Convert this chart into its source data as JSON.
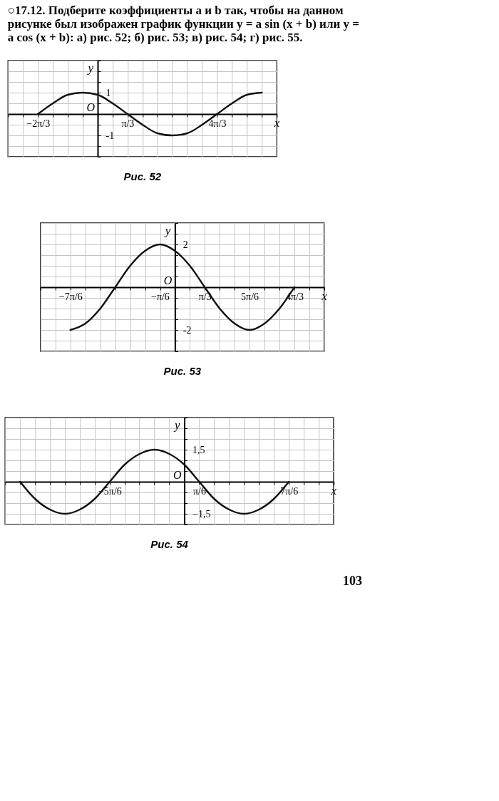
{
  "chart_data": [
    {
      "type": "line",
      "title": "○17.12. Подберите коэффициенты a и b так, чтобы на данном рисунке был изображен график функции y = a sin (x + b) или y = a cos (x + b): а) рис. 52; б) рис. 53; в) рис. 54; г) рис. 55.",
      "xlabel": "x",
      "ylabel": "y",
      "grid": true,
      "marker": "none",
      "line_style": "solid",
      "xlim": [
        -3.142,
        6.283
      ],
      "ylim": [
        -2,
        2.5
      ],
      "xticks": [
        {
          "value": -3.142,
          "label": null
        },
        {
          "value": -2.618,
          "label": null
        },
        {
          "value": -2.094,
          "label": "−2π/3"
        },
        {
          "value": -1.571,
          "label": null
        },
        {
          "value": -1.047,
          "label": null
        },
        {
          "value": -0.524,
          "label": null
        },
        {
          "value": 0,
          "label": null
        },
        {
          "value": 0.524,
          "label": null
        },
        {
          "value": 1.047,
          "label": "π/3"
        },
        {
          "value": 1.571,
          "label": null
        },
        {
          "value": 2.094,
          "label": null
        },
        {
          "value": 2.618,
          "label": null
        },
        {
          "value": 3.142,
          "label": null
        },
        {
          "value": 3.665,
          "label": null
        },
        {
          "value": 4.189,
          "label": "4π/3"
        },
        {
          "value": 4.712,
          "label": null
        },
        {
          "value": 5.236,
          "label": null
        },
        {
          "value": 5.76,
          "label": null
        },
        {
          "value": 6.283,
          "label": null
        }
      ],
      "yticks": [
        {
          "value": -2,
          "label": null
        },
        {
          "value": -1.5,
          "label": null
        },
        -1,
        {
          "value": -0.5,
          "label": null
        },
        {
          "value": 0,
          "label": null
        },
        {
          "value": 0.5,
          "label": null
        },
        1,
        {
          "value": 1.5,
          "label": null
        },
        {
          "value": 2,
          "label": null
        },
        {
          "value": 2.5,
          "label": null
        }
      ],
      "series": [
        {
          "color": "#111111",
          "x": [
            -2.094,
            -1.571,
            -1.047,
            -0.524,
            0,
            0.524,
            1.047,
            1.571,
            2.094,
            2.618,
            3.142,
            3.665,
            4.189,
            4.712,
            5.236,
            5.76
          ],
          "values": [
            0,
            0.5,
            0.9,
            1,
            0.9,
            0.5,
            0,
            -0.5,
            -0.9,
            -1,
            -0.9,
            -0.5,
            0,
            0.5,
            0.9,
            1
          ]
        }
      ],
      "annotations": [
        "O",
        "Рис. 52"
      ]
    },
    {
      "type": "line",
      "xlabel": "x",
      "ylabel": "y",
      "grid": true,
      "marker": "none",
      "line_style": "solid",
      "xlim": [
        -4.712,
        5.236
      ],
      "ylim": [
        -3,
        3
      ],
      "xticks": [
        {
          "value": -4.712,
          "label": null
        },
        {
          "value": -4.189,
          "label": null
        },
        {
          "value": -3.665,
          "label": "−7π/6"
        },
        {
          "value": -3.142,
          "label": null
        },
        {
          "value": -2.618,
          "label": null
        },
        {
          "value": -2.094,
          "label": null
        },
        {
          "value": -1.571,
          "label": null
        },
        {
          "value": -1.047,
          "label": null
        },
        {
          "value": -0.524,
          "label": "−π/6"
        },
        {
          "value": 0,
          "label": null
        },
        {
          "value": 0.524,
          "label": null
        },
        {
          "value": 1.047,
          "label": "π/3"
        },
        {
          "value": 1.571,
          "label": null
        },
        {
          "value": 2.094,
          "label": null
        },
        {
          "value": 2.618,
          "label": "5π/6"
        },
        {
          "value": 3.142,
          "label": null
        },
        {
          "value": 3.665,
          "label": null
        },
        {
          "value": 4.189,
          "label": "4π/3"
        },
        {
          "value": 4.712,
          "label": null
        },
        {
          "value": 5.236,
          "label": null
        }
      ],
      "yticks": [
        {
          "value": -3,
          "label": null
        },
        {
          "value": -2.5,
          "label": null
        },
        -2,
        {
          "value": -1.5,
          "label": null
        },
        {
          "value": -1,
          "label": null
        },
        {
          "value": -0.5,
          "label": null
        },
        {
          "value": 0,
          "label": null
        },
        {
          "value": 0.5,
          "label": null
        },
        {
          "value": 1,
          "label": null
        },
        {
          "value": 1.5,
          "label": null
        },
        2,
        {
          "value": 2.5,
          "label": null
        },
        {
          "value": 3,
          "label": null
        }
      ],
      "series": [
        {
          "color": "#111111",
          "x": [
            -3.665,
            -3.142,
            -2.618,
            -2.094,
            -1.571,
            -1.047,
            -0.524,
            0,
            0.524,
            1.047,
            1.571,
            2.094,
            2.618,
            3.142,
            3.665,
            4.189
          ],
          "values": [
            -2,
            -1.7,
            -1,
            0,
            1,
            1.7,
            2,
            1.7,
            1,
            0,
            -1,
            -1.7,
            -2,
            -1.7,
            -1,
            0
          ]
        }
      ],
      "annotations": [
        "O",
        "Рис. 53"
      ]
    },
    {
      "type": "line",
      "xlabel": "x",
      "ylabel": "y",
      "grid": true,
      "marker": "none",
      "line_style": "solid",
      "xlim": [
        -6.283,
        5.236
      ],
      "ylim": [
        -2,
        3
      ],
      "xticks": [
        {
          "value": -6.283,
          "label": null
        },
        {
          "value": -5.76,
          "label": null
        },
        {
          "value": -5.236,
          "label": null
        },
        {
          "value": -4.712,
          "label": null
        },
        {
          "value": -4.189,
          "label": null
        },
        {
          "value": -3.665,
          "label": null
        },
        {
          "value": -3.142,
          "label": null
        },
        {
          "value": -2.618,
          "label": "−5π/6"
        },
        {
          "value": -2.094,
          "label": null
        },
        {
          "value": -1.571,
          "label": null
        },
        {
          "value": -1.047,
          "label": null
        },
        {
          "value": -0.524,
          "label": null
        },
        {
          "value": 0,
          "label": null
        },
        {
          "value": 0.524,
          "label": "π/6"
        },
        {
          "value": 1.047,
          "label": null
        },
        {
          "value": 1.571,
          "label": null
        },
        {
          "value": 2.094,
          "label": null
        },
        {
          "value": 2.618,
          "label": null
        },
        {
          "value": 3.142,
          "label": null
        },
        {
          "value": 3.665,
          "label": "7π/6"
        },
        {
          "value": 4.189,
          "label": null
        },
        {
          "value": 4.712,
          "label": null
        },
        {
          "value": 5.236,
          "label": null
        }
      ],
      "yticks": [
        {
          "value": -2,
          "label": null
        },
        {
          "value": -1.5,
          "label": "−1,5"
        },
        {
          "value": -1,
          "label": null
        },
        {
          "value": -0.5,
          "label": null
        },
        {
          "value": 0,
          "label": null
        },
        {
          "value": 0.5,
          "label": null
        },
        {
          "value": 1,
          "label": null
        },
        {
          "value": 1.5,
          "label": "1,5"
        },
        {
          "value": 2,
          "label": null
        },
        {
          "value": 2.5,
          "label": null
        },
        {
          "value": 3,
          "label": null
        }
      ],
      "series": [
        {
          "color": "#111111",
          "x": [
            -5.76,
            -5.236,
            -4.712,
            -4.189,
            -3.665,
            -3.142,
            -2.618,
            -2.094,
            -1.571,
            -1.047,
            -0.524,
            0,
            0.524,
            1.047,
            1.571,
            2.094,
            2.618,
            3.142,
            3.665
          ],
          "values": [
            0,
            -0.8,
            -1.3,
            -1.5,
            -1.3,
            -0.8,
            0,
            0.8,
            1.3,
            1.5,
            1.3,
            0.8,
            0,
            -0.8,
            -1.3,
            -1.5,
            -1.3,
            -0.8,
            0
          ]
        }
      ],
      "annotations": [
        "O",
        "Рис. 54",
        "103"
      ]
    }
  ]
}
